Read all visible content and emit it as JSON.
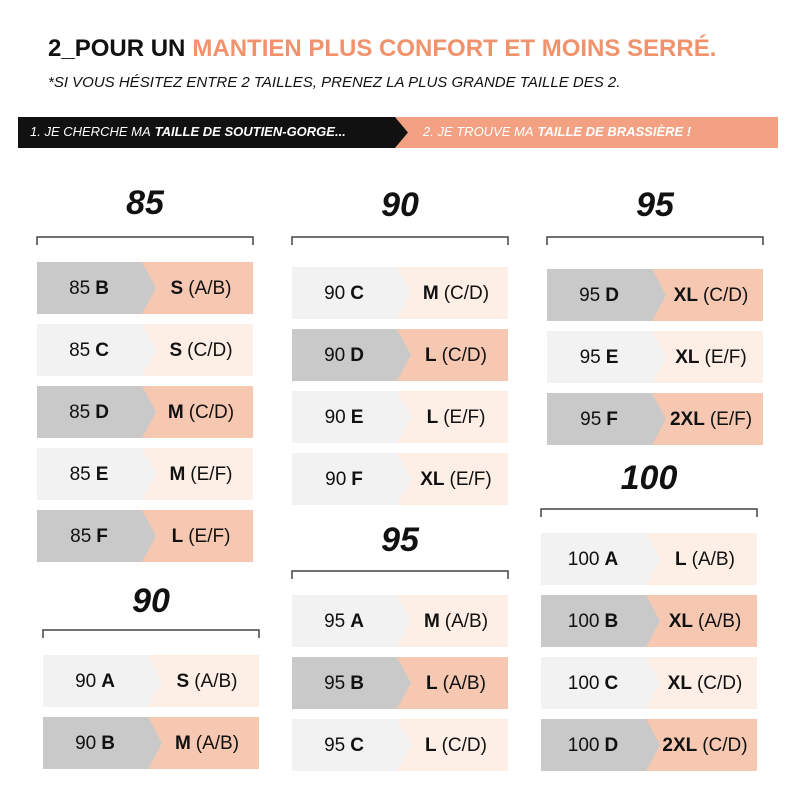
{
  "header": {
    "title_lead": "2_POUR UN",
    "title_highlight": "MANTIEN PLUS CONFORT ET MOINS SERRÉ.",
    "note": "*SI VOUS HÉSITEZ ENTRE 2 TAILLES, PRENEZ LA PLUS GRANDE TAILLE DES 2."
  },
  "steps": [
    {
      "text": "1. JE CHERCHE MA",
      "bold": "TAILLE DE SOUTIEN-GORGE..."
    },
    {
      "text": "2. JE TROUVE MA",
      "bold": "TAILLE DE BRASSIÈRE  !"
    }
  ],
  "groups": [
    {
      "band": "85",
      "rows": [
        {
          "band": "85",
          "cup": "B",
          "size": "S",
          "cups": "(A/B)"
        },
        {
          "band": "85",
          "cup": "C",
          "size": "S",
          "cups": "(C/D)"
        },
        {
          "band": "85",
          "cup": "D",
          "size": "M",
          "cups": "(C/D)"
        },
        {
          "band": "85",
          "cup": "E",
          "size": "M",
          "cups": "(E/F)"
        },
        {
          "band": "85",
          "cup": "F",
          "size": "L",
          "cups": "(E/F)"
        }
      ]
    },
    {
      "band": "90",
      "rows": [
        {
          "band": "90",
          "cup": "A",
          "size": "S",
          "cups": "(A/B)"
        },
        {
          "band": "90",
          "cup": "B",
          "size": "M",
          "cups": "(A/B)"
        }
      ]
    },
    {
      "band": "90",
      "rows": [
        {
          "band": "90",
          "cup": "C",
          "size": "M",
          "cups": "(C/D)"
        },
        {
          "band": "90",
          "cup": "D",
          "size": "L",
          "cups": "(C/D)"
        },
        {
          "band": "90",
          "cup": "E",
          "size": "L",
          "cups": "(E/F)"
        },
        {
          "band": "90",
          "cup": "F",
          "size": "XL",
          "cups": "(E/F)"
        }
      ]
    },
    {
      "band": "95",
      "rows": [
        {
          "band": "95",
          "cup": "A",
          "size": "M",
          "cups": "(A/B)"
        },
        {
          "band": "95",
          "cup": "B",
          "size": "L",
          "cups": "(A/B)"
        },
        {
          "band": "95",
          "cup": "C",
          "size": "L",
          "cups": "(C/D)"
        }
      ]
    },
    {
      "band": "95",
      "rows": [
        {
          "band": "95",
          "cup": "D",
          "size": "XL",
          "cups": "(C/D)"
        },
        {
          "band": "95",
          "cup": "E",
          "size": "XL",
          "cups": "(E/F)"
        },
        {
          "band": "95",
          "cup": "F",
          "size": "2XL",
          "cups": "(E/F)"
        }
      ]
    },
    {
      "band": "100",
      "rows": [
        {
          "band": "100",
          "cup": "A",
          "size": "L",
          "cups": "(A/B)"
        },
        {
          "band": "100",
          "cup": "B",
          "size": "XL",
          "cups": "(A/B)"
        },
        {
          "band": "100",
          "cup": "C",
          "size": "XL",
          "cups": "(C/D)"
        },
        {
          "band": "100",
          "cup": "D",
          "size": "2XL",
          "cups": "(C/D)"
        }
      ]
    }
  ]
}
